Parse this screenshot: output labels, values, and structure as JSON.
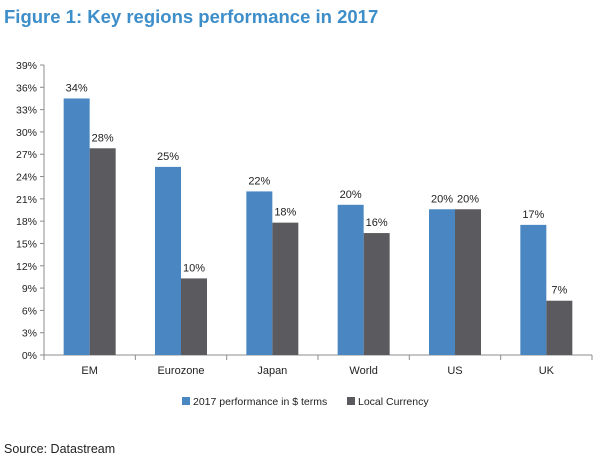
{
  "figure_title": "Figure 1: Key regions performance in 2017",
  "source": "Source: Datastream",
  "chart_data": {
    "type": "bar",
    "title": "Figure 1: Key regions performance in 2017",
    "categories": [
      "EM",
      "Eurozone",
      "Japan",
      "World",
      "US",
      "UK"
    ],
    "series": [
      {
        "name": "2017 performance in $ terms",
        "values": [
          34.5,
          25.3,
          22.0,
          20.2,
          19.6,
          17.5
        ],
        "labels": [
          "34%",
          "25%",
          "22%",
          "20%",
          "20%",
          "17%"
        ],
        "color": "#4a87c2"
      },
      {
        "name": "Local Currency",
        "values": [
          27.8,
          10.3,
          17.8,
          16.4,
          19.6,
          7.3
        ],
        "labels": [
          "28%",
          "10%",
          "18%",
          "16%",
          "20%",
          "7%"
        ],
        "color": "#5b5b5f"
      }
    ],
    "yticks": [
      "0%",
      "3%",
      "6%",
      "9%",
      "12%",
      "15%",
      "18%",
      "21%",
      "24%",
      "27%",
      "30%",
      "33%",
      "36%",
      "39%"
    ],
    "ylim": [
      0,
      39
    ],
    "xlabel": "",
    "ylabel": "",
    "grid": false,
    "legend_position": "bottom"
  }
}
